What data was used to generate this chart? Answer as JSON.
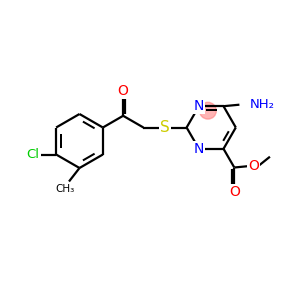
{
  "bg_color": "#ffffff",
  "bond_color": "#000000",
  "bond_lw": 1.6,
  "atom_colors": {
    "O": "#ff0000",
    "N": "#0000ff",
    "S": "#cccc00",
    "Cl": "#00cc00",
    "NH2": "#0000ff"
  },
  "font_size": 9,
  "fig_size": [
    3.0,
    3.0
  ],
  "dpi": 100,
  "highlight_color": "#ff7777",
  "highlight_alpha": 0.55
}
